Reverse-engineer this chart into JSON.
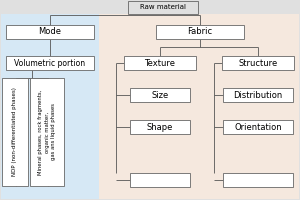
{
  "bg_color": "#e0e0e0",
  "mode_bg": "#d6e8f5",
  "fabric_bg": "#f5e8de",
  "box_edge": "#666666",
  "box_fill": "#ffffff",
  "line_color": "#555555",
  "raw_material_label": "Raw material",
  "mode_label": "Mode",
  "fabric_label": "Fabric",
  "vol_label": "Volumetric portion",
  "texture_label": "Texture",
  "structure_label": "Structure",
  "size_label": "Size",
  "dist_label": "Distribution",
  "shape_label": "Shape",
  "orient_label": "Orientation",
  "ndp_label": "NDP (non-differentiated phases)",
  "mineral_label": "Mineral phases, rock fragments,\norganic matter,\ngas ans liquid phases"
}
